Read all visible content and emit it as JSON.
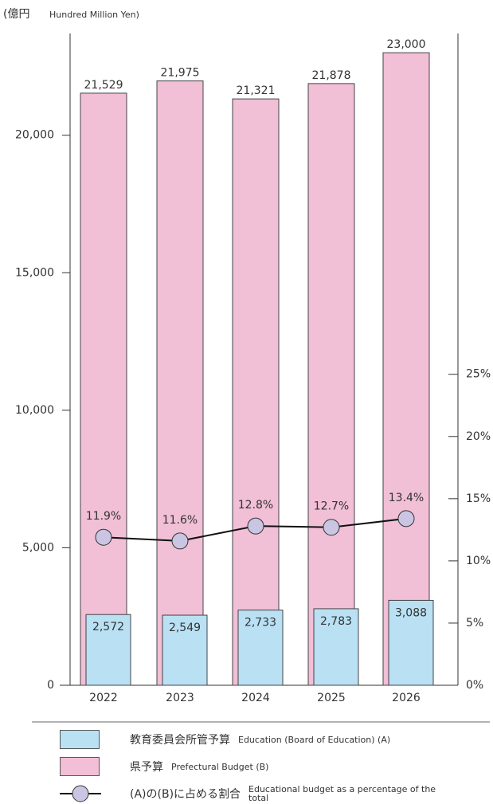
{
  "chart_data": {
    "type": "bar",
    "unit_label": "(億円",
    "unit_label_en": "Hundred Million Yen)",
    "categories": [
      "2022",
      "2023",
      "2024",
      "2025",
      "2026"
    ],
    "series": [
      {
        "name": "県予算",
        "name_en": "Prefectural Budget (B)",
        "color": "#f1bfd6",
        "values": [
          21529,
          21975,
          21321,
          21878,
          23000
        ],
        "value_labels": [
          "21,529",
          "21,975",
          "21,321",
          "21,878",
          "23,000"
        ]
      },
      {
        "name": "教育委員会所管予算",
        "name_en": "Education (Board of Education) (A)",
        "color": "#b9e1f3",
        "values": [
          2572,
          2549,
          2733,
          2783,
          3088
        ],
        "value_labels": [
          "2,572",
          "2,549",
          "2,733",
          "2,783",
          "3,088"
        ]
      },
      {
        "name": "(A)の(B)に占める割合",
        "name_en": "Educational budget as a percentage of the total",
        "color": "#c9c5e3",
        "axis": "y2",
        "values": [
          11.9,
          11.6,
          12.8,
          12.7,
          13.4
        ],
        "value_labels": [
          "11.9%",
          "11.6%",
          "12.8%",
          "12.7%",
          "13.4%"
        ]
      }
    ],
    "ylim": [
      0,
      23700
    ],
    "yticks": [
      0,
      {
        "value": 5000,
        "label": "5,000"
      },
      {
        "value": 10000,
        "label": "10,000"
      },
      {
        "value": 15000,
        "label": "15,000"
      },
      {
        "value": 20000,
        "label": "20,000"
      }
    ],
    "y2lim": [
      0,
      52.4
    ],
    "y2ticks": [
      {
        "value": 0,
        "label": "0%"
      },
      {
        "value": 5,
        "label": "5%"
      },
      {
        "value": 10,
        "label": "10%"
      },
      {
        "value": 15,
        "label": "15%"
      },
      {
        "value": 20,
        "label": "20%"
      },
      {
        "value": 25,
        "label": "25%"
      }
    ]
  }
}
